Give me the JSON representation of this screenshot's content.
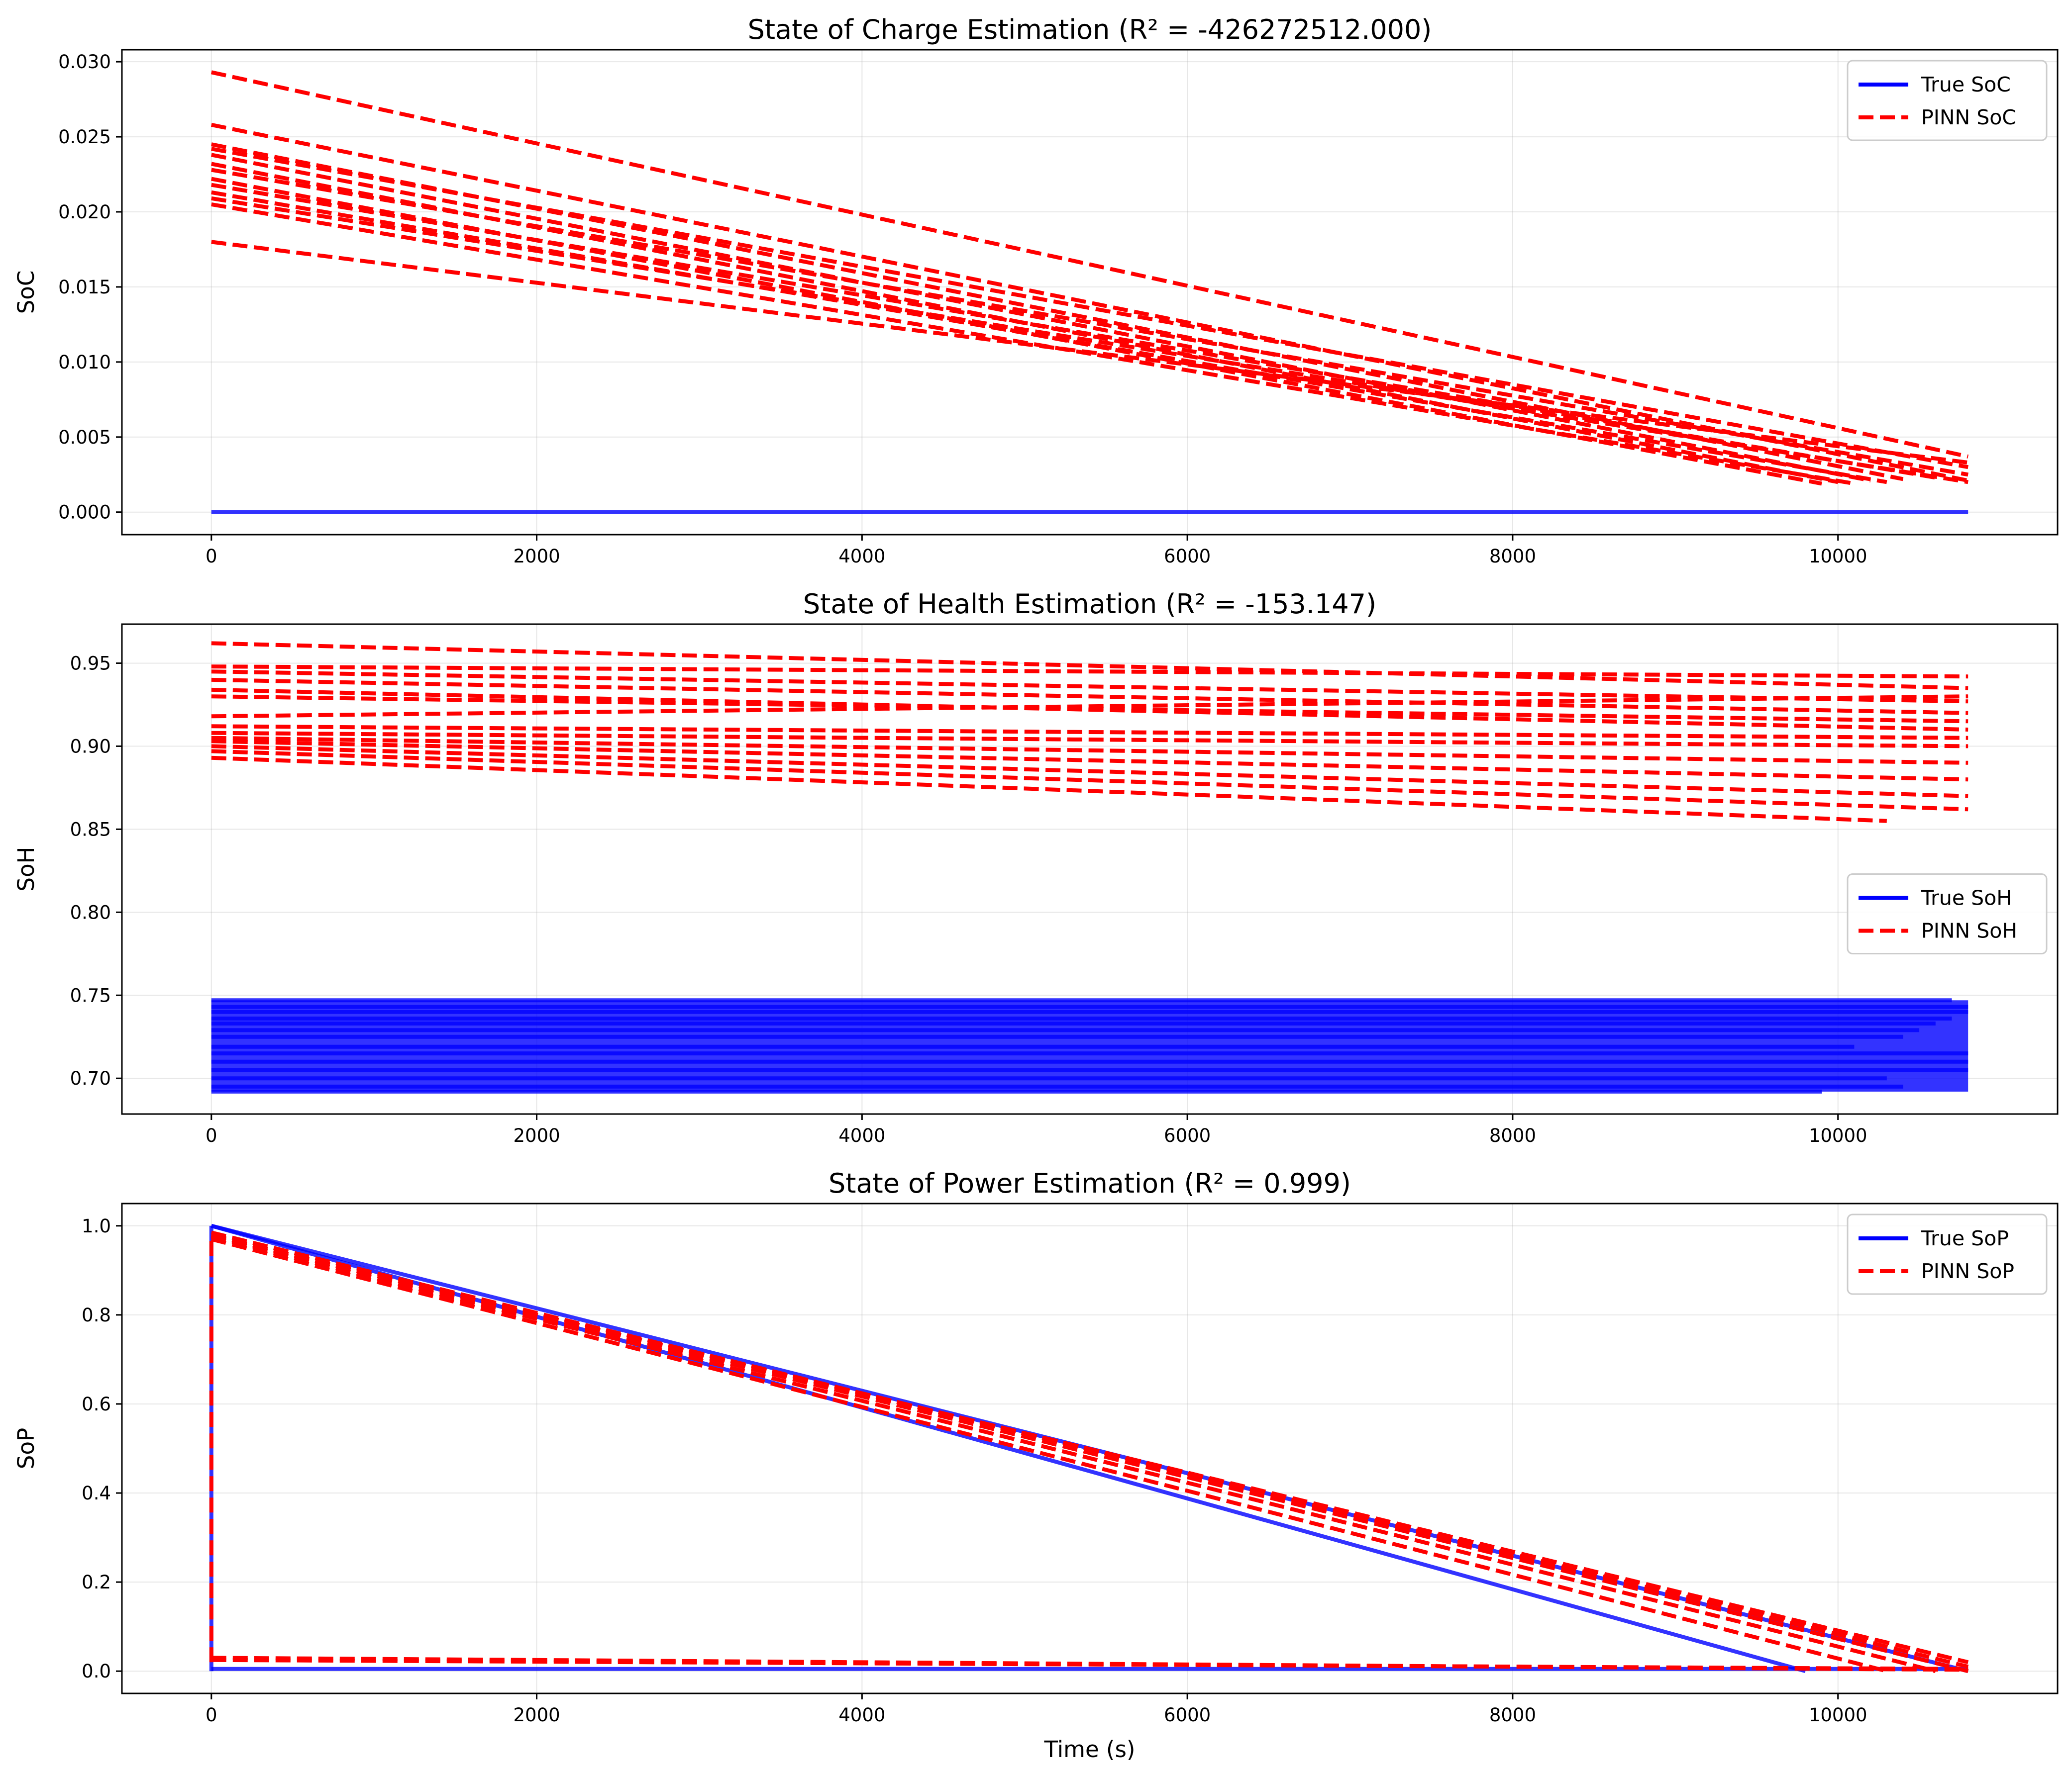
{
  "chart_data": [
    {
      "type": "line",
      "title": "State of Charge Estimation (R² = -426272512.000)",
      "xlabel": "",
      "ylabel": "SoC",
      "xlim": [
        -550,
        11350
      ],
      "ylim": [
        -0.0015,
        0.0308
      ],
      "xticks": [
        0,
        2000,
        4000,
        6000,
        8000,
        10000
      ],
      "xtick_labels": [
        "0",
        "2000",
        "4000",
        "6000",
        "8000",
        "10000"
      ],
      "yticks": [
        0.0,
        0.005,
        0.01,
        0.015,
        0.02,
        0.025,
        0.03
      ],
      "ytick_labels": [
        "0.000",
        "0.005",
        "0.010",
        "0.015",
        "0.020",
        "0.025",
        "0.030"
      ],
      "grid": true,
      "legend_position": "top-right",
      "legend": [
        {
          "label": "True SoC",
          "color": "#0000ff",
          "style": "solid"
        },
        {
          "label": "PINN SoC",
          "color": "#ff0000",
          "style": "dashed"
        }
      ],
      "series": [
        {
          "name": "True SoC",
          "color": "#0000ff",
          "style": "solid",
          "segments": [
            [
              [
                0,
                0.0
              ],
              [
                10800,
                0.0
              ]
            ]
          ]
        },
        {
          "name": "PINN SoC",
          "color": "#ff0000",
          "style": "dashed",
          "segments": [
            [
              [
                0,
                0.0293
              ],
              [
                10800,
                0.0037
              ]
            ],
            [
              [
                0,
                0.0258
              ],
              [
                10800,
                0.0021
              ]
            ],
            [
              [
                0,
                0.0245
              ],
              [
                10400,
                0.0022
              ]
            ],
            [
              [
                0,
                0.0242
              ],
              [
                10800,
                0.003
              ]
            ],
            [
              [
                0,
                0.0238
              ],
              [
                10200,
                0.0021
              ]
            ],
            [
              [
                0,
                0.0232
              ],
              [
                10000,
                0.002
              ]
            ],
            [
              [
                0,
                0.0228
              ],
              [
                10800,
                0.0025
              ]
            ],
            [
              [
                0,
                0.0222
              ],
              [
                9900,
                0.0019
              ]
            ],
            [
              [
                0,
                0.0218
              ],
              [
                10600,
                0.0023
              ]
            ],
            [
              [
                0,
                0.0213
              ],
              [
                10300,
                0.002
              ]
            ],
            [
              [
                0,
                0.0209
              ],
              [
                10800,
                0.002
              ]
            ],
            [
              [
                0,
                0.0205
              ],
              [
                10100,
                0.0019
              ]
            ],
            [
              [
                0,
                0.018
              ],
              [
                10800,
                0.0033
              ]
            ]
          ]
        }
      ]
    },
    {
      "type": "line",
      "title": "State of Health Estimation (R² = -153.147)",
      "xlabel": "",
      "ylabel": "SoH",
      "xlim": [
        -550,
        11350
      ],
      "ylim": [
        0.6785,
        0.9735
      ],
      "xticks": [
        0,
        2000,
        4000,
        6000,
        8000,
        10000
      ],
      "xtick_labels": [
        "0",
        "2000",
        "4000",
        "6000",
        "8000",
        "10000"
      ],
      "yticks": [
        0.7,
        0.75,
        0.8,
        0.85,
        0.9,
        0.95
      ],
      "ytick_labels": [
        "0.70",
        "0.75",
        "0.80",
        "0.85",
        "0.90",
        "0.95"
      ],
      "grid": true,
      "legend_position": "center-right",
      "legend": [
        {
          "label": "True SoH",
          "color": "#0000ff",
          "style": "solid"
        },
        {
          "label": "PINN SoH",
          "color": "#ff0000",
          "style": "dashed"
        }
      ],
      "series": [
        {
          "name": "True SoH",
          "color": "#0000ff",
          "style": "solid",
          "band": {
            "x_start": 0,
            "x_end": 10800,
            "y_low": 0.692,
            "y_high": 0.747
          },
          "segments": [
            [
              [
                0,
                0.747
              ],
              [
                10700,
                0.747
              ]
            ],
            [
              [
                0,
                0.743
              ],
              [
                10800,
                0.743
              ]
            ],
            [
              [
                0,
                0.74
              ],
              [
                10800,
                0.74
              ]
            ],
            [
              [
                0,
                0.736
              ],
              [
                10700,
                0.736
              ]
            ],
            [
              [
                0,
                0.733
              ],
              [
                10600,
                0.733
              ]
            ],
            [
              [
                0,
                0.729
              ],
              [
                10500,
                0.729
              ]
            ],
            [
              [
                0,
                0.725
              ],
              [
                10400,
                0.725
              ]
            ],
            [
              [
                0,
                0.719
              ],
              [
                10100,
                0.719
              ]
            ],
            [
              [
                0,
                0.715
              ],
              [
                10800,
                0.715
              ]
            ],
            [
              [
                0,
                0.71
              ],
              [
                10800,
                0.71
              ]
            ],
            [
              [
                0,
                0.705
              ],
              [
                10800,
                0.705
              ]
            ],
            [
              [
                0,
                0.7
              ],
              [
                10300,
                0.7
              ]
            ],
            [
              [
                0,
                0.695
              ],
              [
                10400,
                0.695
              ]
            ],
            [
              [
                0,
                0.692
              ],
              [
                9900,
                0.692
              ]
            ]
          ]
        },
        {
          "name": "PINN SoH",
          "color": "#ff0000",
          "style": "dashed",
          "segments": [
            [
              [
                0,
                0.962
              ],
              [
                10800,
                0.935
              ]
            ],
            [
              [
                0,
                0.948
              ],
              [
                10800,
                0.942
              ]
            ],
            [
              [
                0,
                0.945
              ],
              [
                10800,
                0.927
              ]
            ],
            [
              [
                0,
                0.94
              ],
              [
                10800,
                0.92
              ]
            ],
            [
              [
                0,
                0.934
              ],
              [
                10800,
                0.91
              ]
            ],
            [
              [
                0,
                0.93
              ],
              [
                10800,
                0.915
              ]
            ],
            [
              [
                0,
                0.918
              ],
              [
                10800,
                0.93
              ]
            ],
            [
              [
                0,
                0.912
              ],
              [
                10800,
                0.905
              ]
            ],
            [
              [
                0,
                0.908
              ],
              [
                10800,
                0.9
              ]
            ],
            [
              [
                0,
                0.905
              ],
              [
                10800,
                0.89
              ]
            ],
            [
              [
                0,
                0.903
              ],
              [
                10800,
                0.88
              ]
            ],
            [
              [
                0,
                0.9
              ],
              [
                10800,
                0.87
              ]
            ],
            [
              [
                0,
                0.897
              ],
              [
                10800,
                0.862
              ]
            ],
            [
              [
                0,
                0.893
              ],
              [
                10300,
                0.855
              ]
            ]
          ]
        }
      ]
    },
    {
      "type": "line",
      "title": "State of Power Estimation (R² = 0.999)",
      "xlabel": "Time (s)",
      "ylabel": "SoP",
      "xlim": [
        -550,
        11350
      ],
      "ylim": [
        -0.05,
        1.05
      ],
      "xticks": [
        0,
        2000,
        4000,
        6000,
        8000,
        10000
      ],
      "xtick_labels": [
        "0",
        "2000",
        "4000",
        "6000",
        "8000",
        "10000"
      ],
      "yticks": [
        0.0,
        0.2,
        0.4,
        0.6,
        0.8,
        1.0
      ],
      "ytick_labels": [
        "0.0",
        "0.2",
        "0.4",
        "0.6",
        "0.8",
        "1.0"
      ],
      "grid": true,
      "legend_position": "top-right",
      "legend": [
        {
          "label": "True SoP",
          "color": "#0000ff",
          "style": "solid"
        },
        {
          "label": "PINN SoP",
          "color": "#ff0000",
          "style": "dashed"
        }
      ],
      "series": [
        {
          "name": "True SoP",
          "color": "#0000ff",
          "style": "solid",
          "segments": [
            [
              [
                0,
                1.0
              ],
              [
                10800,
                0.0
              ]
            ],
            [
              [
                0,
                1.0
              ],
              [
                9800,
                0.0
              ]
            ],
            [
              [
                0,
                0.005
              ],
              [
                10800,
                0.005
              ]
            ],
            [
              [
                0,
                0.0
              ],
              [
                0,
                1.0
              ]
            ]
          ]
        },
        {
          "name": "PINN SoP",
          "color": "#ff0000",
          "style": "dashed",
          "segments": [
            [
              [
                0,
                0.98
              ],
              [
                10800,
                0.0
              ]
            ],
            [
              [
                0,
                0.975
              ],
              [
                10600,
                0.0
              ]
            ],
            [
              [
                0,
                0.985
              ],
              [
                10800,
                0.01
              ]
            ],
            [
              [
                0,
                0.97
              ],
              [
                10300,
                0.0
              ]
            ],
            [
              [
                0,
                0.978
              ],
              [
                10800,
                0.02
              ]
            ],
            [
              [
                0,
                0.03
              ],
              [
                10800,
                0.003
              ]
            ],
            [
              [
                0,
                0.025
              ],
              [
                10800,
                0.005
              ]
            ],
            [
              [
                0,
                0.02
              ],
              [
                0,
                0.98
              ]
            ]
          ]
        }
      ]
    }
  ]
}
